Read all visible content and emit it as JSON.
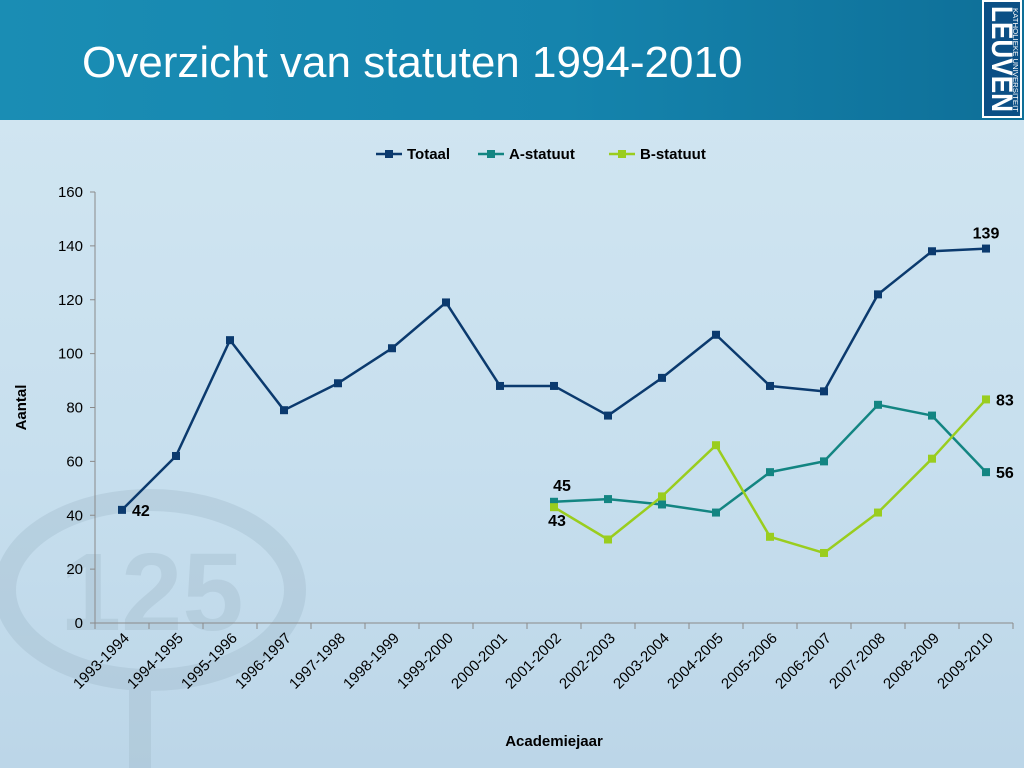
{
  "slide": {
    "title": "Overzicht van statuten 1994-2010",
    "logo_line1": "LEUVEN",
    "logo_line2": "KATHOLIEKE UNIVERSITEIT",
    "watermark_text": "125"
  },
  "colors": {
    "header": "#1584ad",
    "totaal": "#0b3a6e",
    "a_statuut": "#138582",
    "b_statuut": "#9acd1e"
  },
  "chart_data": {
    "type": "line",
    "xlabel": "Academiejaar",
    "ylabel": "Aantal",
    "ylim": [
      0,
      160
    ],
    "yticks": [
      0,
      20,
      40,
      60,
      80,
      100,
      120,
      140,
      160
    ],
    "legend_position": "top",
    "categories": [
      "1993-1994",
      "1994-1995",
      "1995-1996",
      "1996-1997",
      "1997-1998",
      "1998-1999",
      "1999-2000",
      "2000-2001",
      "2001-2002",
      "2002-2003",
      "2003-2004",
      "2004-2005",
      "2005-2006",
      "2006-2007",
      "2007-2008",
      "2008-2009",
      "2009-2010"
    ],
    "series": [
      {
        "name": "Totaal",
        "color": "#0b3a6e",
        "values": [
          42,
          62,
          105,
          79,
          89,
          102,
          119,
          88,
          88,
          77,
          91,
          107,
          88,
          86,
          122,
          138,
          139
        ]
      },
      {
        "name": "A-statuut",
        "color": "#138582",
        "values": [
          null,
          null,
          null,
          null,
          null,
          null,
          null,
          null,
          45,
          46,
          44,
          41,
          56,
          60,
          81,
          77,
          56
        ]
      },
      {
        "name": "B-statuut",
        "color": "#9acd1e",
        "values": [
          null,
          null,
          null,
          null,
          null,
          null,
          null,
          null,
          43,
          31,
          47,
          66,
          32,
          26,
          41,
          61,
          83
        ]
      }
    ],
    "data_labels": [
      {
        "series": 0,
        "index": 0,
        "text": "42"
      },
      {
        "series": 0,
        "index": 16,
        "text": "139"
      },
      {
        "series": 1,
        "index": 8,
        "text": "45"
      },
      {
        "series": 2,
        "index": 8,
        "text": "43"
      },
      {
        "series": 2,
        "index": 16,
        "text": "83"
      },
      {
        "series": 1,
        "index": 16,
        "text": "56"
      }
    ]
  }
}
